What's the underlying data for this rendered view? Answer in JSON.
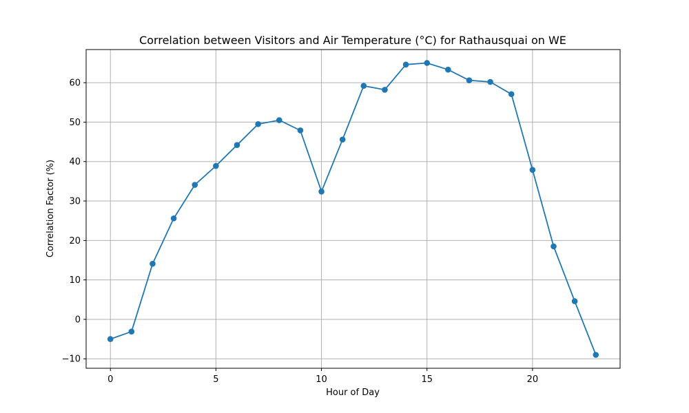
{
  "chart_data": {
    "type": "line",
    "title": "Correlation between Visitors and Air Temperature (°C) for Rathausquai on WE",
    "xlabel": "Hour of Day",
    "ylabel": "Correlation Factor (%)",
    "xlim": [
      -1.15,
      24.15
    ],
    "ylim": [
      -12.4,
      68.4
    ],
    "xticks": [
      0,
      5,
      10,
      15,
      20
    ],
    "yticks": [
      -10,
      0,
      10,
      20,
      30,
      40,
      50,
      60
    ],
    "xtick_labels": [
      "0",
      "5",
      "10",
      "15",
      "20"
    ],
    "ytick_labels": [
      "−10",
      "0",
      "10",
      "20",
      "30",
      "40",
      "50",
      "60"
    ],
    "grid": true,
    "series": [
      {
        "color": "#1f77b4",
        "marker": "circle",
        "x": [
          0,
          1,
          2,
          3,
          4,
          5,
          6,
          7,
          8,
          9,
          10,
          11,
          12,
          13,
          14,
          15,
          16,
          17,
          18,
          19,
          20,
          21,
          22,
          23
        ],
        "y": [
          -5.0,
          -3.1,
          14.1,
          25.6,
          34.1,
          38.9,
          44.2,
          49.5,
          50.5,
          47.9,
          32.4,
          45.6,
          59.2,
          58.2,
          64.6,
          65.0,
          63.3,
          60.6,
          60.2,
          57.1,
          37.9,
          18.5,
          4.6,
          -9.0
        ]
      }
    ],
    "colors": {
      "grid": "#b0b0b0",
      "axes": "#000000"
    }
  }
}
